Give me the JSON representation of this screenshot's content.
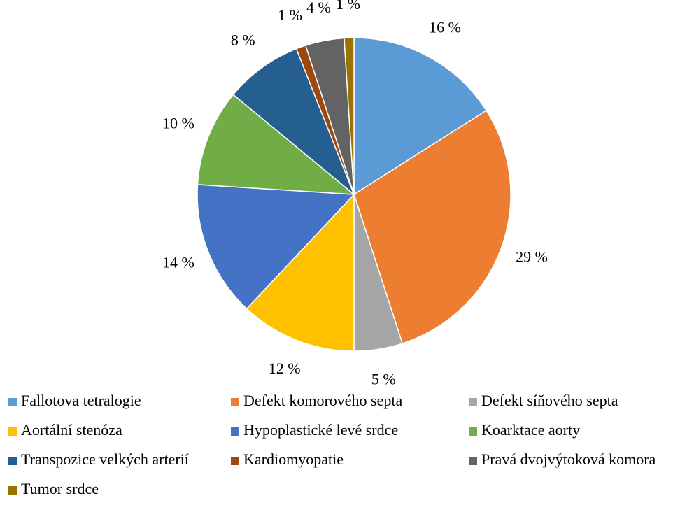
{
  "chart_data": {
    "type": "pie",
    "categories": [
      "Fallotova tetralogie",
      "Defekt komorového septa",
      "Defekt síňového septa",
      "Aortální stenóza",
      "Hypoplastické levé srdce",
      "Koarktace aorty",
      "Transpozice velkých arterií",
      "Kardiomyopatie",
      "Pravá dvojvýtoková komora",
      "Tumor srdce"
    ],
    "values": [
      16,
      29,
      5,
      12,
      14,
      10,
      8,
      1,
      4,
      1
    ],
    "value_labels": [
      "16 %",
      "29 %",
      "5 %",
      "12 %",
      "14 %",
      "10 %",
      "8 %",
      "1 %",
      "4 %",
      "1 %"
    ],
    "colors": [
      "#5b9bd5",
      "#ed7d31",
      "#a5a5a5",
      "#ffc000",
      "#4472c4",
      "#70ad47",
      "#255e91",
      "#9e480e",
      "#636363",
      "#997300"
    ],
    "legend": "bottom"
  }
}
